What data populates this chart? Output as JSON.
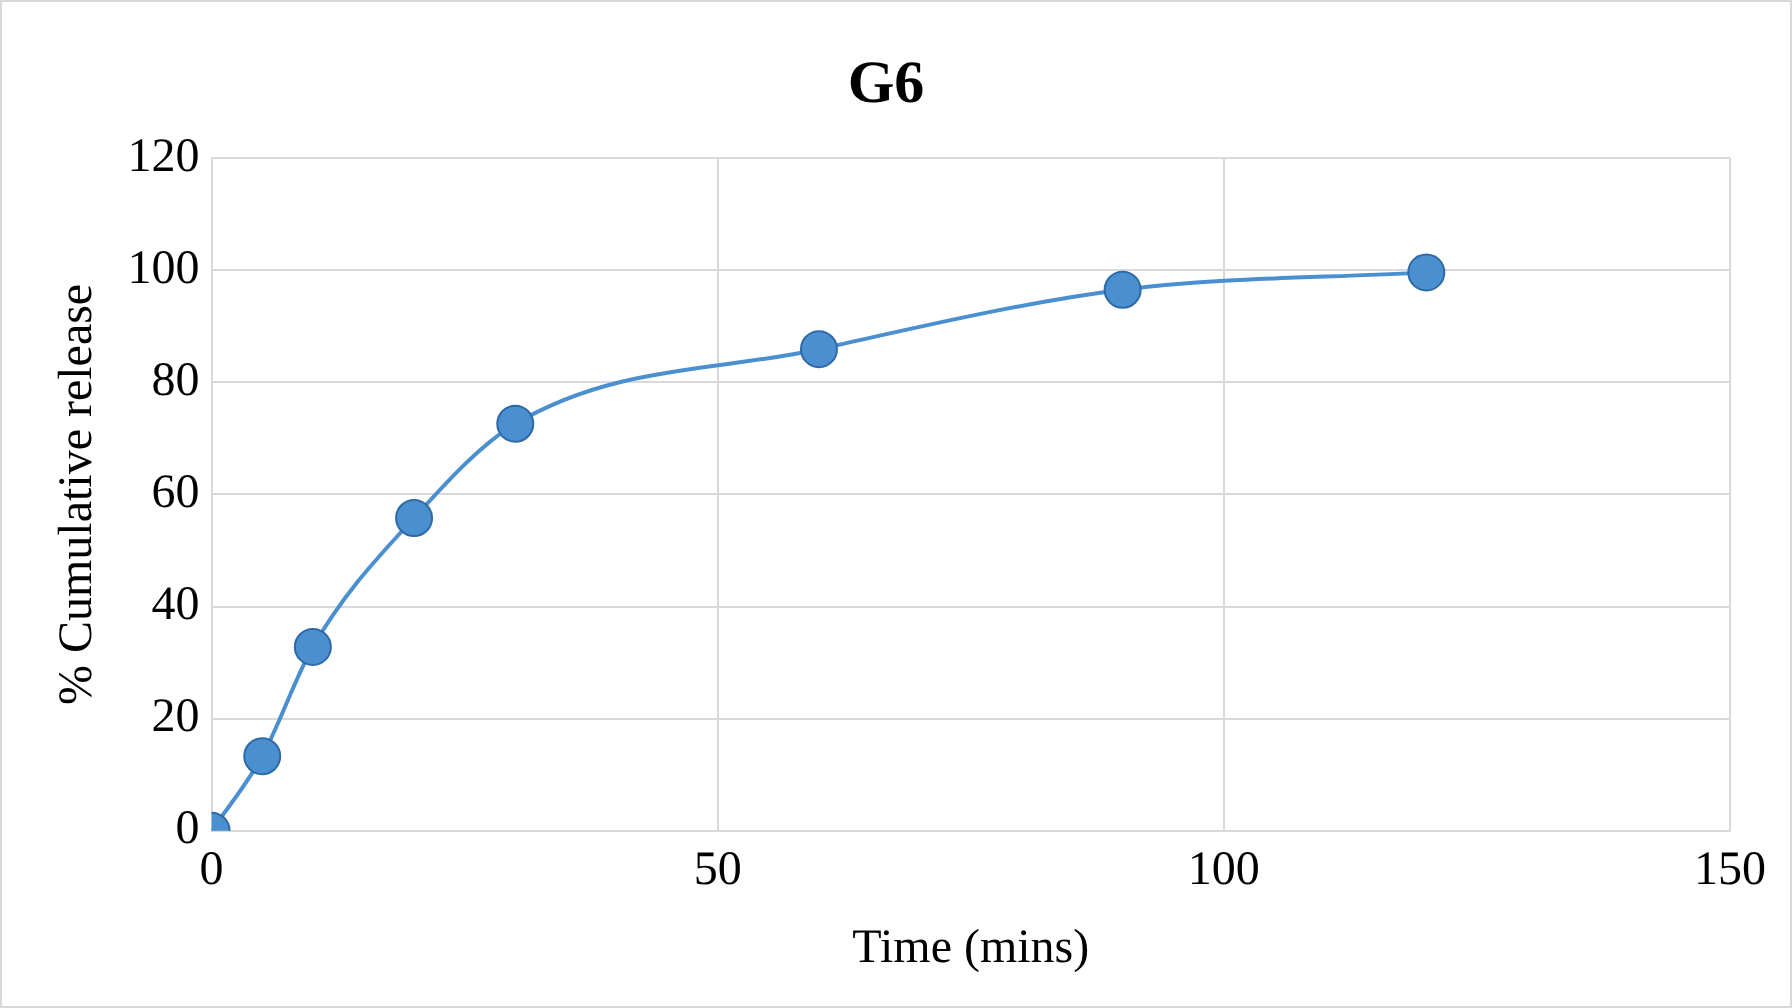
{
  "chart_data": {
    "type": "line",
    "title": "G6",
    "xlabel": "Time (mins)",
    "ylabel": "% Cumulative release",
    "x": [
      0,
      5,
      10,
      20,
      30,
      60,
      90,
      120
    ],
    "series": [
      {
        "color": "#4a8fd0",
        "values": [
          0,
          13.3,
          32.8,
          55.8,
          72.6,
          85.9,
          96.5,
          99.6
        ]
      }
    ],
    "xlim": [
      0,
      150
    ],
    "xticks": [
      0,
      50,
      100,
      150
    ],
    "ylim": [
      0,
      120
    ],
    "yticks": [
      0,
      20,
      40,
      60,
      80,
      100,
      120
    ],
    "grid": true,
    "legend": false,
    "marker": "circle",
    "line_style": "solid"
  }
}
